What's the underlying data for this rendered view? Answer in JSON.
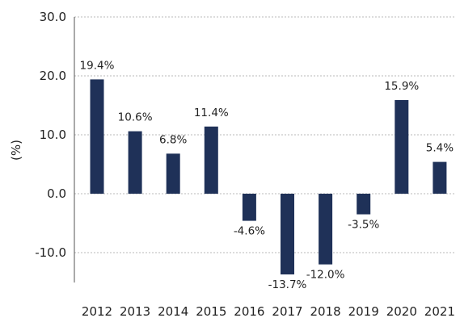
{
  "chart_data": {
    "type": "bar",
    "title": "",
    "xlabel": "",
    "ylabel": "(%)",
    "ylim": [
      -15,
      30
    ],
    "yticks": [
      "-10.0",
      "0.0",
      "10.0",
      "20.0",
      "30.0"
    ],
    "grid": true,
    "bar_color": "#1f3158",
    "categories": [
      "2012",
      "2013",
      "2014",
      "2015",
      "2016",
      "2017",
      "2018",
      "2019",
      "2020",
      "2021"
    ],
    "values": [
      19.4,
      10.6,
      6.8,
      11.4,
      -4.6,
      -13.7,
      -12.0,
      -3.5,
      15.9,
      5.4
    ],
    "labels": [
      "19.4%",
      "10.6%",
      "6.8%",
      "11.4%",
      "-4.6%",
      "-13.7%",
      "-12.0%",
      "-3.5%",
      "15.9%",
      "5.4%"
    ]
  }
}
